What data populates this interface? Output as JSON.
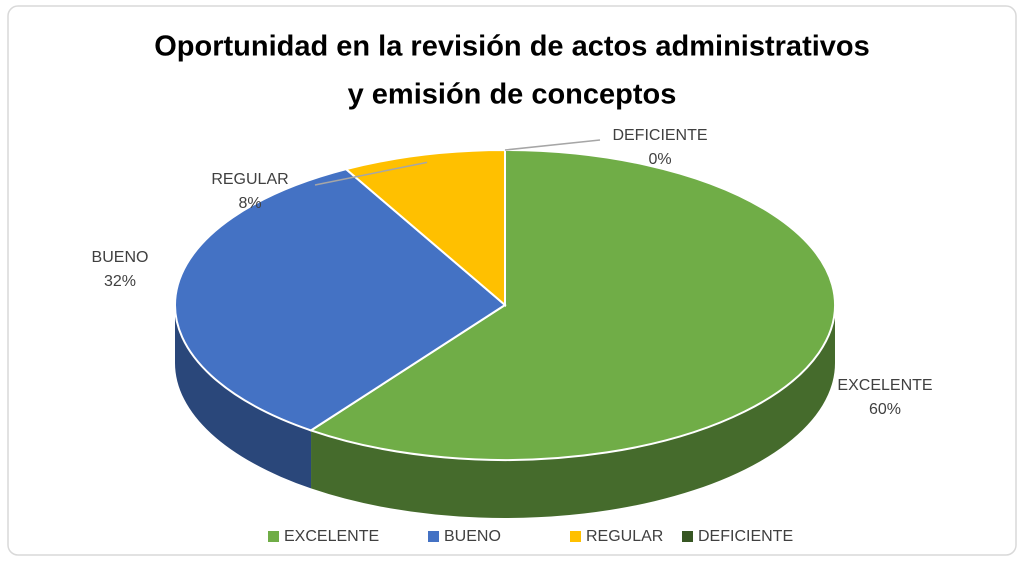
{
  "chart_data": {
    "type": "pie",
    "title": [
      "Oportunidad en la revisión de actos administrativos",
      "y emisión de conceptos"
    ],
    "categories": [
      "EXCELENTE",
      "BUENO",
      "REGULAR",
      "DEFICIENTE"
    ],
    "values": [
      60,
      32,
      8,
      0
    ],
    "value_labels": [
      "60%",
      "32%",
      "8%",
      "0%"
    ],
    "colors": [
      "#70ad47",
      "#4472c4",
      "#ffc000",
      "#375623"
    ],
    "legend": "bottom"
  }
}
